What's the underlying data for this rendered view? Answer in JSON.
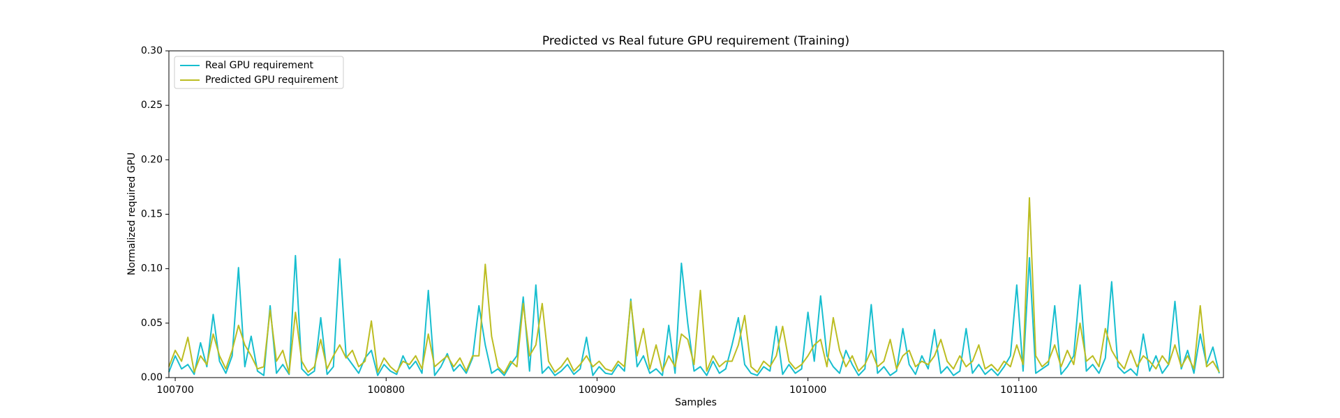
{
  "chart_data": {
    "type": "line",
    "title": "Predicted vs Real future GPU requirement (Training)",
    "x_label": "Samples",
    "y_label": "Normalized required GPU",
    "legend": "upper left",
    "xlim": [
      100697,
      101197
    ],
    "xticks": [
      100700,
      100800,
      100900,
      101000,
      101100
    ],
    "ylim": [
      0,
      0.3
    ],
    "yticks": [
      {
        "value": 0,
        "label": "0.00"
      },
      {
        "value": 0.05,
        "label": "0.05"
      },
      {
        "value": 0.1,
        "label": "0.10"
      },
      {
        "value": 0.15,
        "label": "0.15"
      },
      {
        "value": 0.2,
        "label": "0.20"
      },
      {
        "value": 0.25,
        "label": "0.25"
      },
      {
        "value": 0.3,
        "label": "0.30"
      }
    ],
    "x": [
      100697,
      100700,
      100703,
      100706,
      100709,
      100712,
      100715,
      100718,
      100721,
      100724,
      100727,
      100730,
      100733,
      100736,
      100739,
      100742,
      100745,
      100748,
      100751,
      100754,
      100757,
      100760,
      100763,
      100766,
      100769,
      100772,
      100775,
      100778,
      100781,
      100784,
      100787,
      100790,
      100793,
      100796,
      100799,
      100802,
      100805,
      100808,
      100811,
      100814,
      100817,
      100820,
      100823,
      100826,
      100829,
      100832,
      100835,
      100838,
      100841,
      100844,
      100847,
      100850,
      100853,
      100856,
      100859,
      100862,
      100865,
      100868,
      100871,
      100874,
      100877,
      100880,
      100883,
      100886,
      100889,
      100892,
      100895,
      100898,
      100901,
      100904,
      100907,
      100910,
      100913,
      100916,
      100919,
      100922,
      100925,
      100928,
      100931,
      100934,
      100937,
      100940,
      100943,
      100946,
      100949,
      100952,
      100955,
      100958,
      100961,
      100964,
      100967,
      100970,
      100973,
      100976,
      100979,
      100982,
      100985,
      100988,
      100991,
      100994,
      100997,
      101000,
      101003,
      101006,
      101009,
      101012,
      101015,
      101018,
      101021,
      101024,
      101027,
      101030,
      101033,
      101036,
      101039,
      101042,
      101045,
      101048,
      101051,
      101054,
      101057,
      101060,
      101063,
      101066,
      101069,
      101072,
      101075,
      101078,
      101081,
      101084,
      101087,
      101090,
      101093,
      101096,
      101099,
      101102,
      101105,
      101108,
      101111,
      101114,
      101117,
      101120,
      101123,
      101126,
      101129,
      101132,
      101135,
      101138,
      101141,
      101144,
      101147,
      101150,
      101153,
      101156,
      101159,
      101162,
      101165,
      101168,
      101171,
      101174,
      101177,
      101180,
      101183,
      101186,
      101189,
      101192,
      101195
    ],
    "series": [
      {
        "name": "Real GPU requirement",
        "color": "#17becf",
        "values": [
          0.005,
          0.02,
          0.008,
          0.012,
          0.003,
          0.032,
          0.01,
          0.058,
          0.015,
          0.004,
          0.02,
          0.101,
          0.01,
          0.038,
          0.006,
          0.002,
          0.066,
          0.004,
          0.012,
          0.003,
          0.112,
          0.008,
          0.002,
          0.006,
          0.055,
          0.003,
          0.01,
          0.109,
          0.02,
          0.012,
          0.004,
          0.018,
          0.025,
          0.002,
          0.012,
          0.006,
          0.003,
          0.02,
          0.008,
          0.015,
          0.004,
          0.08,
          0.002,
          0.01,
          0.022,
          0.006,
          0.012,
          0.004,
          0.018,
          0.066,
          0.03,
          0.004,
          0.008,
          0.002,
          0.012,
          0.02,
          0.074,
          0.006,
          0.085,
          0.004,
          0.01,
          0.002,
          0.006,
          0.012,
          0.003,
          0.008,
          0.037,
          0.002,
          0.01,
          0.004,
          0.003,
          0.012,
          0.006,
          0.072,
          0.01,
          0.02,
          0.004,
          0.008,
          0.002,
          0.048,
          0.004,
          0.105,
          0.05,
          0.006,
          0.01,
          0.002,
          0.015,
          0.004,
          0.008,
          0.03,
          0.055,
          0.012,
          0.004,
          0.002,
          0.01,
          0.006,
          0.047,
          0.003,
          0.012,
          0.004,
          0.008,
          0.06,
          0.015,
          0.075,
          0.02,
          0.01,
          0.004,
          0.025,
          0.012,
          0.002,
          0.008,
          0.067,
          0.004,
          0.01,
          0.002,
          0.006,
          0.045,
          0.012,
          0.003,
          0.02,
          0.008,
          0.044,
          0.004,
          0.01,
          0.002,
          0.006,
          0.045,
          0.004,
          0.012,
          0.003,
          0.008,
          0.002,
          0.01,
          0.02,
          0.085,
          0.006,
          0.11,
          0.004,
          0.008,
          0.012,
          0.066,
          0.003,
          0.01,
          0.02,
          0.085,
          0.006,
          0.012,
          0.004,
          0.018,
          0.088,
          0.01,
          0.004,
          0.008,
          0.002,
          0.04,
          0.006,
          0.02,
          0.004,
          0.012,
          0.07,
          0.008,
          0.025,
          0.004,
          0.04,
          0.012,
          0.028,
          0.004
        ]
      },
      {
        "name": "Predicted GPU requirement",
        "color": "#bcbd22",
        "values": [
          0.01,
          0.025,
          0.015,
          0.037,
          0.005,
          0.02,
          0.012,
          0.04,
          0.02,
          0.008,
          0.025,
          0.048,
          0.03,
          0.02,
          0.008,
          0.01,
          0.062,
          0.015,
          0.025,
          0.004,
          0.06,
          0.015,
          0.005,
          0.01,
          0.035,
          0.008,
          0.02,
          0.03,
          0.018,
          0.025,
          0.01,
          0.015,
          0.052,
          0.005,
          0.018,
          0.01,
          0.005,
          0.015,
          0.012,
          0.02,
          0.008,
          0.04,
          0.01,
          0.015,
          0.02,
          0.01,
          0.018,
          0.006,
          0.02,
          0.02,
          0.104,
          0.038,
          0.01,
          0.004,
          0.015,
          0.01,
          0.068,
          0.02,
          0.03,
          0.068,
          0.015,
          0.005,
          0.01,
          0.018,
          0.006,
          0.012,
          0.02,
          0.01,
          0.015,
          0.008,
          0.006,
          0.015,
          0.01,
          0.07,
          0.02,
          0.045,
          0.008,
          0.03,
          0.006,
          0.02,
          0.01,
          0.04,
          0.035,
          0.012,
          0.08,
          0.006,
          0.02,
          0.01,
          0.015,
          0.015,
          0.03,
          0.057,
          0.01,
          0.005,
          0.015,
          0.01,
          0.02,
          0.047,
          0.015,
          0.008,
          0.012,
          0.02,
          0.03,
          0.035,
          0.01,
          0.055,
          0.025,
          0.01,
          0.02,
          0.006,
          0.012,
          0.025,
          0.01,
          0.015,
          0.035,
          0.008,
          0.02,
          0.025,
          0.01,
          0.015,
          0.012,
          0.02,
          0.035,
          0.015,
          0.008,
          0.02,
          0.01,
          0.015,
          0.03,
          0.008,
          0.012,
          0.006,
          0.015,
          0.01,
          0.03,
          0.012,
          0.165,
          0.02,
          0.01,
          0.015,
          0.03,
          0.01,
          0.025,
          0.012,
          0.05,
          0.015,
          0.02,
          0.01,
          0.045,
          0.025,
          0.015,
          0.008,
          0.025,
          0.01,
          0.02,
          0.015,
          0.008,
          0.02,
          0.012,
          0.03,
          0.01,
          0.02,
          0.008,
          0.066,
          0.01,
          0.015,
          0.005
        ]
      }
    ]
  }
}
